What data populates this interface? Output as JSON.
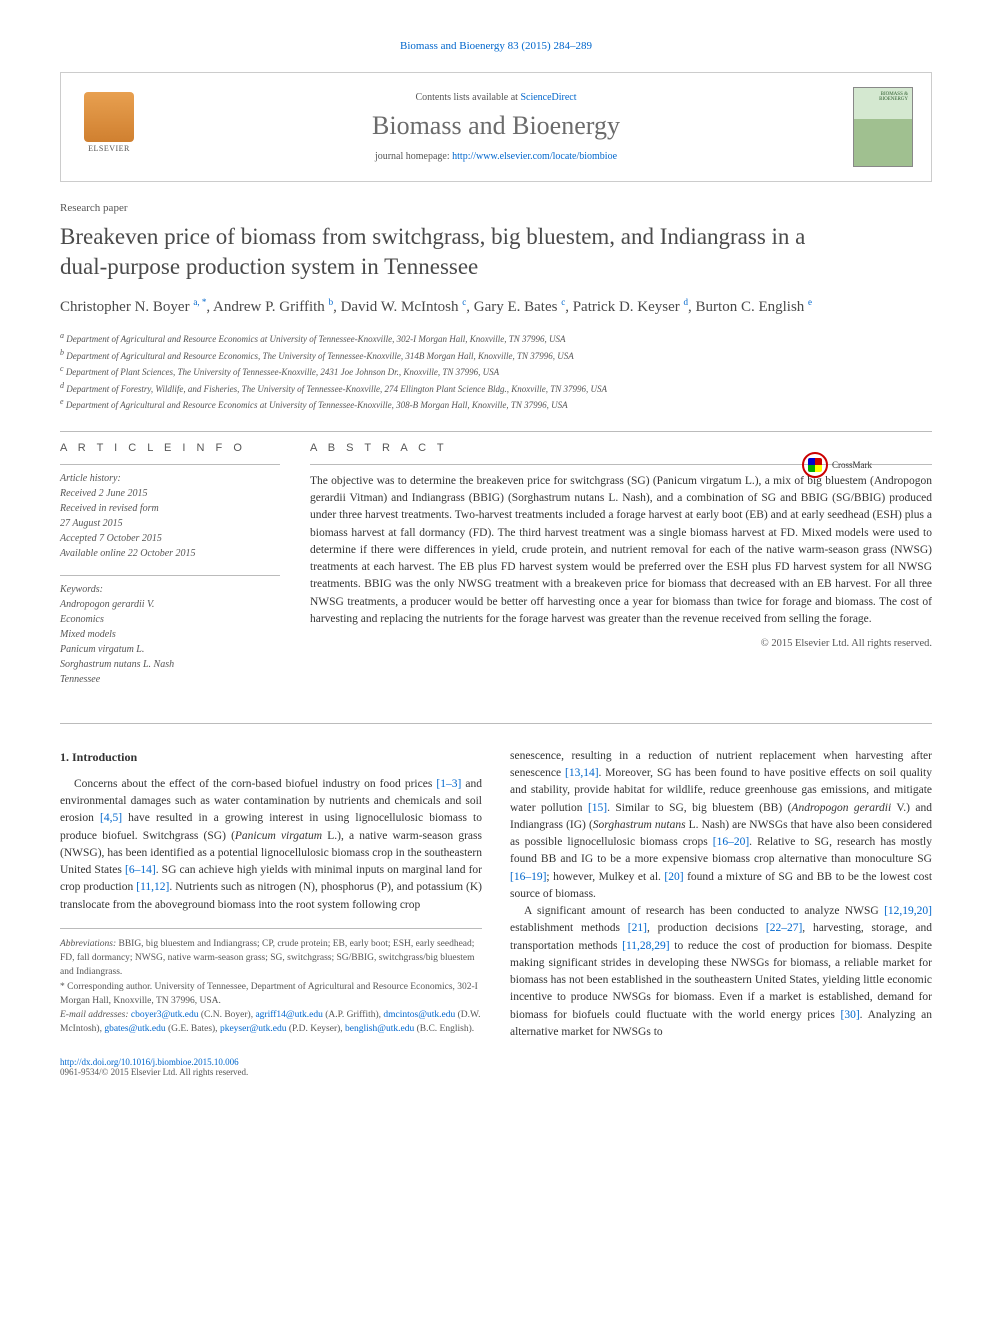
{
  "citation": "Biomass and Bioenergy 83 (2015) 284–289",
  "header": {
    "contents_prefix": "Contents lists available at ",
    "contents_link": "ScienceDirect",
    "journal": "Biomass and Bioenergy",
    "homepage_prefix": "journal homepage: ",
    "homepage_link": "http://www.elsevier.com/locate/biombioe",
    "publisher": "ELSEVIER",
    "cover_label": "BIOMASS & BIOENERGY"
  },
  "paper_type": "Research paper",
  "title": "Breakeven price of biomass from switchgrass, big bluestem, and Indiangrass in a dual-purpose production system in Tennessee",
  "crossmark": "CrossMark",
  "authors_html": "Christopher N. Boyer <sup>a, *</sup>, Andrew P. Griffith <sup>b</sup>, David W. McIntosh <sup>c</sup>, Gary E. Bates <sup>c</sup>, Patrick D. Keyser <sup>d</sup>, Burton C. English <sup>e</sup>",
  "affiliations": {
    "a": "Department of Agricultural and Resource Economics at University of Tennessee-Knoxville, 302-I Morgan Hall, Knoxville, TN 37996, USA",
    "b": "Department of Agricultural and Resource Economics, The University of Tennessee-Knoxville, 314B Morgan Hall, Knoxville, TN 37996, USA",
    "c": "Department of Plant Sciences, The University of Tennessee-Knoxville, 2431 Joe Johnson Dr., Knoxville, TN 37996, USA",
    "d": "Department of Forestry, Wildlife, and Fisheries, The University of Tennessee-Knoxville, 274 Ellington Plant Science Bldg., Knoxville, TN 37996, USA",
    "e": "Department of Agricultural and Resource Economics at University of Tennessee-Knoxville, 308-B Morgan Hall, Knoxville, TN 37996, USA"
  },
  "section_labels": {
    "info": "A R T I C L E  I N F O",
    "abstract": "A B S T R A C T"
  },
  "article_info": {
    "history_label": "Article history:",
    "received": "Received 2 June 2015",
    "revised": "Received in revised form",
    "revised_date": "27 August 2015",
    "accepted": "Accepted 7 October 2015",
    "online": "Available online 22 October 2015",
    "keywords_label": "Keywords:",
    "keywords": [
      "Andropogon gerardii V.",
      "Economics",
      "Mixed models",
      "Panicum virgatum L.",
      "Sorghastrum nutans L. Nash",
      "Tennessee"
    ]
  },
  "abstract": "The objective was to determine the breakeven price for switchgrass (SG) (Panicum virgatum L.), a mix of big bluestem (Andropogon gerardii Vitman) and Indiangrass (BBIG) (Sorghastrum nutans L. Nash), and a combination of SG and BBIG (SG/BBIG) produced under three harvest treatments. Two-harvest treatments included a forage harvest at early boot (EB) and at early seedhead (ESH) plus a biomass harvest at fall dormancy (FD). The third harvest treatment was a single biomass harvest at FD. Mixed models were used to determine if there were differences in yield, crude protein, and nutrient removal for each of the native warm-season grass (NWSG) treatments at each harvest. The EB plus FD harvest system would be preferred over the ESH plus FD harvest system for all NWSG treatments. BBIG was the only NWSG treatment with a breakeven price for biomass that decreased with an EB harvest. For all three NWSG treatments, a producer would be better off harvesting once a year for biomass than twice for forage and biomass. The cost of harvesting and replacing the nutrients for the forage harvest was greater than the revenue received from selling the forage.",
  "copyright": "© 2015 Elsevier Ltd. All rights reserved.",
  "intro_heading": "1. Introduction",
  "body": {
    "col1_p1_a": "Concerns about the effect of the corn-based biofuel industry on food prices ",
    "col1_ref1": "[1–3]",
    "col1_p1_b": " and environmental damages such as water contamination by nutrients and chemicals and soil erosion ",
    "col1_ref2": "[4,5]",
    "col1_p1_c": " have resulted in a growing interest in using lignocellulosic biomass to produce biofuel. Switchgrass (SG) (",
    "col1_em1": "Panicum virgatum",
    "col1_p1_d": " L.), a native warm-season grass (NWSG), has been identified as a potential lignocellulosic biomass crop in the southeastern United States ",
    "col1_ref3": "[6–14]",
    "col1_p1_e": ". SG can achieve high yields with minimal inputs on marginal land for crop production ",
    "col1_ref4": "[11,12]",
    "col1_p1_f": ". Nutrients such as nitrogen (N), phosphorus (P), and potassium (K) translocate from the aboveground biomass into the root system following crop",
    "col2_p1_a": "senescence, resulting in a reduction of nutrient replacement when harvesting after senescence ",
    "col2_ref1": "[13,14]",
    "col2_p1_b": ". Moreover, SG has been found to have positive effects on soil quality and stability, provide habitat for wildlife, reduce greenhouse gas emissions, and mitigate water pollution ",
    "col2_ref2": "[15]",
    "col2_p1_c": ". Similar to SG, big bluestem (BB) (",
    "col2_em1": "Andropogon gerardii",
    "col2_p1_d": " V.) and Indiangrass (IG) (",
    "col2_em2": "Sorghastrum nutans",
    "col2_p1_e": " L. Nash) are NWSGs that have also been considered as possible lignocellulosic biomass crops ",
    "col2_ref3": "[16–20]",
    "col2_p1_f": ". Relative to SG, research has mostly found BB and IG to be a more expensive biomass crop alternative than monoculture SG ",
    "col2_ref4": "[16–19]",
    "col2_p1_g": "; however, Mulkey et al. ",
    "col2_ref5": "[20]",
    "col2_p1_h": " found a mixture of SG and BB to be the lowest cost source of biomass.",
    "col2_p2_a": "A significant amount of research has been conducted to analyze NWSG ",
    "col2_ref6": "[12,19,20]",
    "col2_p2_b": " establishment methods ",
    "col2_ref7": "[21]",
    "col2_p2_c": ", production decisions ",
    "col2_ref8": "[22–27]",
    "col2_p2_d": ", harvesting, storage, and transportation methods ",
    "col2_ref9": "[11,28,29]",
    "col2_p2_e": " to reduce the cost of production for biomass. Despite making significant strides in developing these NWSGs for biomass, a reliable market for biomass has not been established in the southeastern United States, yielding little economic incentive to produce NWSGs for biomass. Even if a market is established, demand for biomass for biofuels could fluctuate with the world energy prices ",
    "col2_ref10": "[30]",
    "col2_p2_f": ". Analyzing an alternative market for NWSGs to"
  },
  "footnotes": {
    "abbrev_label": "Abbreviations:",
    "abbrev": " BBIG, big bluestem and Indiangrass; CP, crude protein; EB, early boot; ESH, early seedhead; FD, fall dormancy; NWSG, native warm-season grass; SG, switchgrass; SG/BBIG, switchgrass/big bluestem and Indiangrass.",
    "corr_label": "* ",
    "corr": "Corresponding author. University of Tennessee, Department of Agricultural and Resource Economics, 302-I Morgan Hall, Knoxville, TN 37996, USA.",
    "email_label": "E-mail addresses:",
    "emails": [
      {
        "addr": "cboyer3@utk.edu",
        "name": " (C.N. Boyer), "
      },
      {
        "addr": "agriff14@utk.edu",
        "name": " (A.P. Griffith), "
      },
      {
        "addr": "dmcintos@utk.edu",
        "name": " (D.W. McIntosh), "
      },
      {
        "addr": "gbates@utk.edu",
        "name": " (G.E. Bates), "
      },
      {
        "addr": "pkeyser@utk.edu",
        "name": " (P.D. Keyser), "
      },
      {
        "addr": "benglish@utk.edu",
        "name": " (B.C. English)."
      }
    ]
  },
  "doi": "http://dx.doi.org/10.1016/j.biombioe.2015.10.006",
  "issn_line": "0961-9534/© 2015 Elsevier Ltd. All rights reserved.",
  "colors": {
    "link": "#0066cc",
    "text": "#333333",
    "muted": "#555555",
    "border": "#bbbbbb"
  }
}
